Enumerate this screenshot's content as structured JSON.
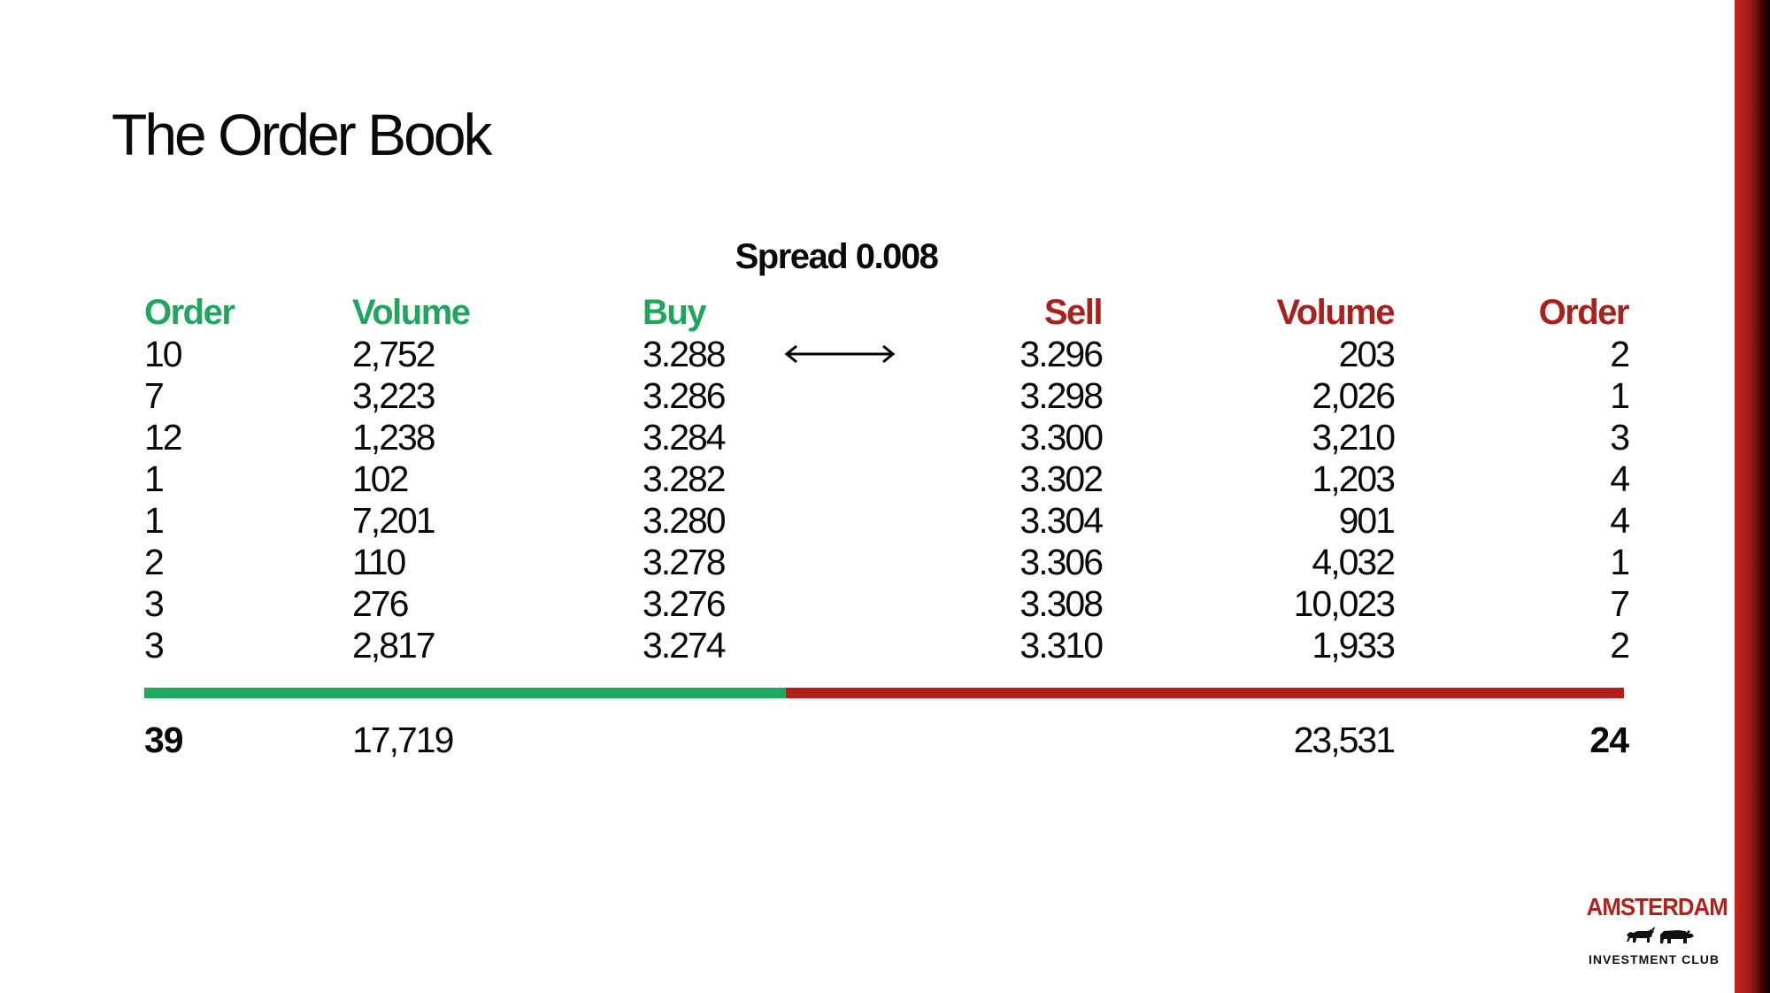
{
  "title": "The Order Book",
  "spread": "Spread 0.008",
  "headers": {
    "buy_order": "Order",
    "buy_volume": "Volume",
    "buy": "Buy",
    "sell": "Sell",
    "sell_volume": "Volume",
    "sell_order": "Order"
  },
  "rows": [
    {
      "buy_order": "10",
      "buy_volume": "2,752",
      "buy": "3.288",
      "sell": "3.296",
      "sell_volume": "203",
      "sell_order": "2"
    },
    {
      "buy_order": "7",
      "buy_volume": "3,223",
      "buy": "3.286",
      "sell": "3.298",
      "sell_volume": "2,026",
      "sell_order": "1"
    },
    {
      "buy_order": "12",
      "buy_volume": "1,238",
      "buy": "3.284",
      "sell": "3.300",
      "sell_volume": "3,210",
      "sell_order": "3"
    },
    {
      "buy_order": "1",
      "buy_volume": "102",
      "buy": "3.282",
      "sell": "3.302",
      "sell_volume": "1,203",
      "sell_order": "4"
    },
    {
      "buy_order": "1",
      "buy_volume": "7,201",
      "buy": "3.280",
      "sell": "3.304",
      "sell_volume": "901",
      "sell_order": "4"
    },
    {
      "buy_order": "2",
      "buy_volume": "110",
      "buy": "3.278",
      "sell": "3.306",
      "sell_volume": "4,032",
      "sell_order": "1"
    },
    {
      "buy_order": "3",
      "buy_volume": "276",
      "buy": "3.276",
      "sell": "3.308",
      "sell_volume": "10,023",
      "sell_order": "7"
    },
    {
      "buy_order": "3",
      "buy_volume": "2,817",
      "buy": "3.274",
      "sell": "3.310",
      "sell_volume": "1,933",
      "sell_order": "2"
    }
  ],
  "totals": {
    "buy_order": "39",
    "buy_volume": "17,719",
    "sell_volume": "23,531",
    "sell_order": "24"
  },
  "logo": {
    "name": "AMSTERDAM",
    "subtitle": "INVESTMENT CLUB"
  },
  "colors": {
    "buy": "#1fa55d",
    "sell": "#a7221d",
    "edge": "#b0211c"
  },
  "icons": [
    "double-arrow-icon",
    "bull-icon",
    "bear-icon"
  ]
}
